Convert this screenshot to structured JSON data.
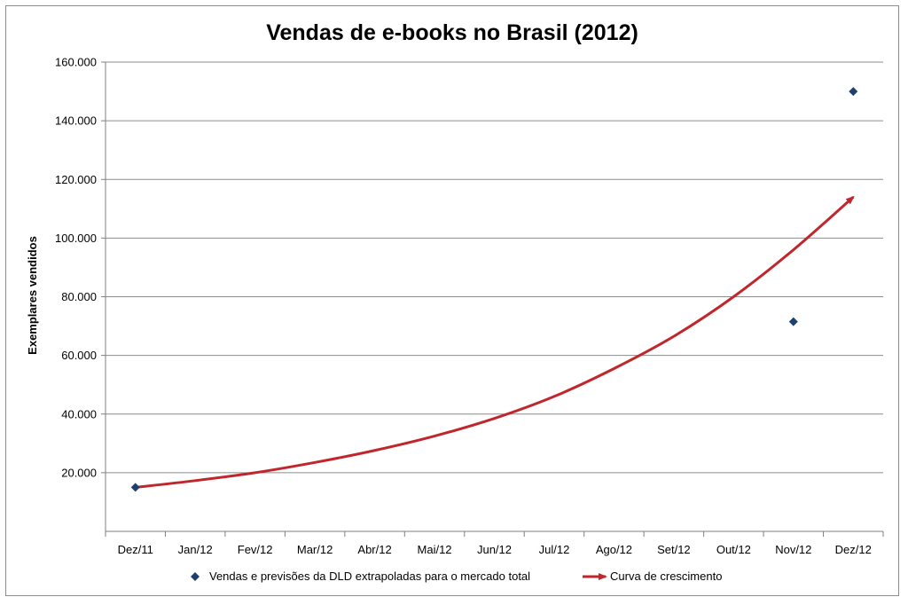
{
  "chart_data": {
    "type": "scatter",
    "title": "Vendas de e-books no Brasil (2012)",
    "xlabel": "",
    "ylabel": "Exemplares vendidos",
    "categories": [
      "Dez/11",
      "Jan/12",
      "Fev/12",
      "Mar/12",
      "Abr/12",
      "Mai/12",
      "Jun/12",
      "Jul/12",
      "Ago/12",
      "Set/12",
      "Out/12",
      "Nov/12",
      "Dez/12"
    ],
    "ylim": [
      0,
      160000
    ],
    "yticks": [
      20000,
      40000,
      60000,
      80000,
      100000,
      120000,
      140000,
      160000
    ],
    "ytick_labels": [
      "20.000",
      "40.000",
      "60.000",
      "80.000",
      "100.000",
      "120.000",
      "140.000",
      "160.000"
    ],
    "grid": true,
    "legend_position": "bottom",
    "series": [
      {
        "name": "Vendas e previsões da DLD extrapoladas para o mercado total",
        "kind": "scatter",
        "marker": "diamond",
        "color": "#1f3f6e",
        "points": [
          {
            "x": "Dez/11",
            "y": 15000
          },
          {
            "x": "Nov/12",
            "y": 71500
          },
          {
            "x": "Dez/12",
            "y": 150000
          }
        ]
      },
      {
        "name": "Curva de crescimento",
        "kind": "line-arrow",
        "color": "#c0272d",
        "points": [
          {
            "x": "Dez/11",
            "y": 15000
          },
          {
            "x": "Jan/12",
            "y": 17300
          },
          {
            "x": "Fev/12",
            "y": 20000
          },
          {
            "x": "Mar/12",
            "y": 23500
          },
          {
            "x": "Abr/12",
            "y": 27600
          },
          {
            "x": "Mai/12",
            "y": 32500
          },
          {
            "x": "Jun/12",
            "y": 38500
          },
          {
            "x": "Jul/12",
            "y": 46000
          },
          {
            "x": "Ago/12",
            "y": 55500
          },
          {
            "x": "Set/12",
            "y": 66500
          },
          {
            "x": "Out/12",
            "y": 80000
          },
          {
            "x": "Nov/12",
            "y": 96000
          },
          {
            "x": "Dez/12",
            "y": 114000
          }
        ]
      }
    ]
  }
}
